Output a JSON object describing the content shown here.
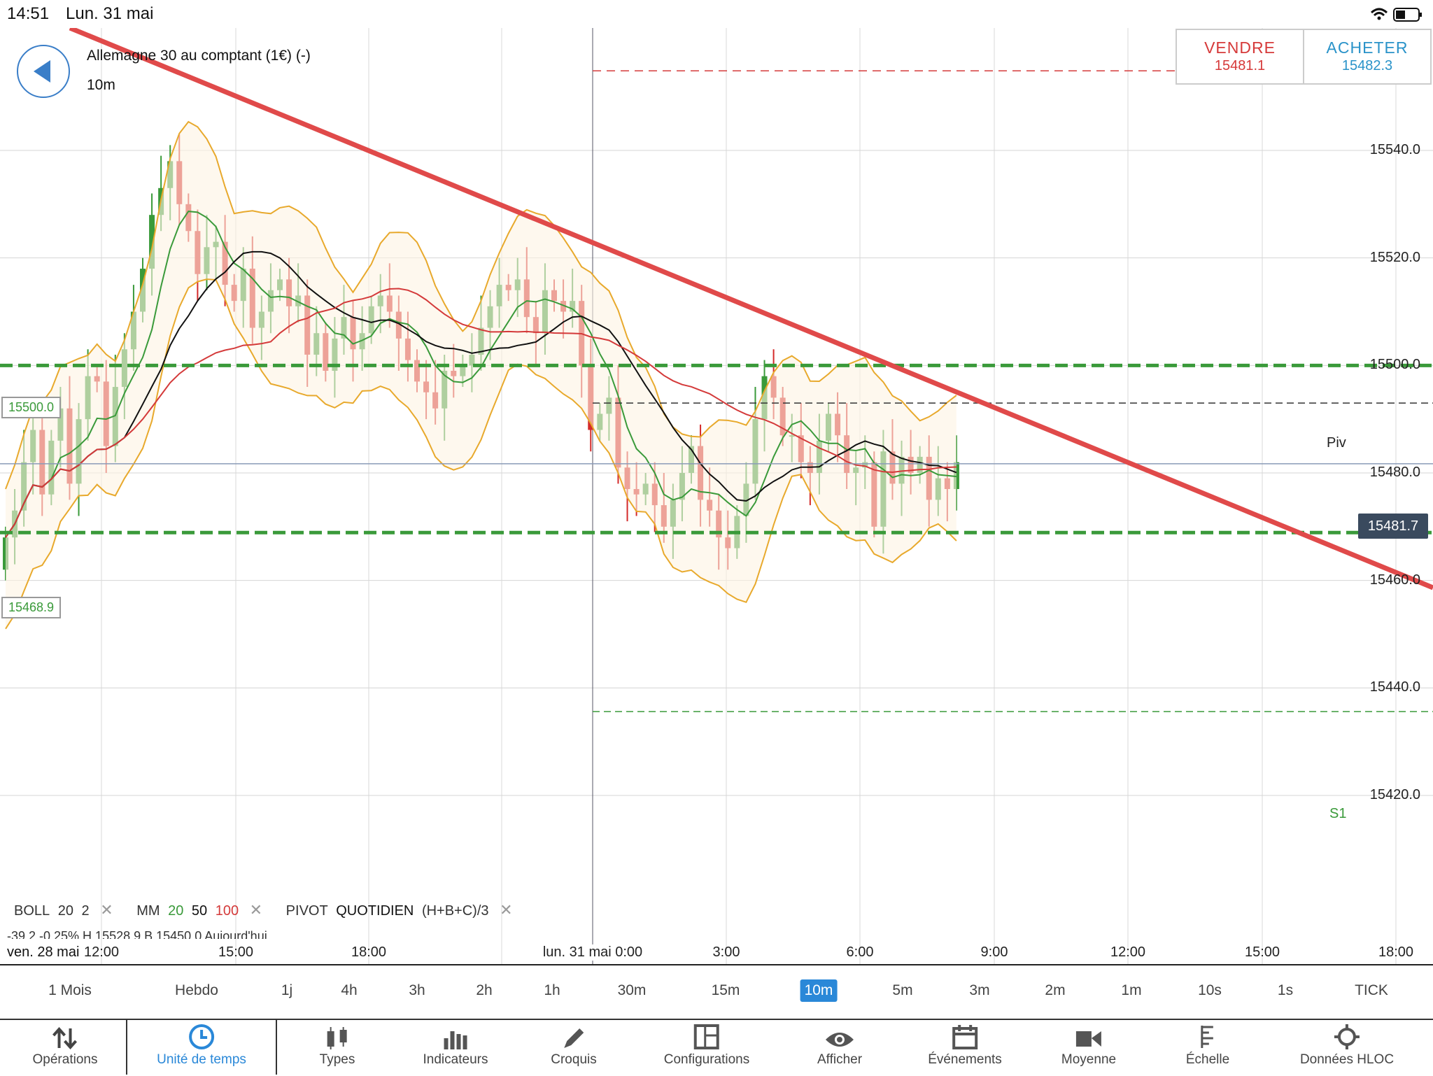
{
  "status_bar": {
    "time": "14:51",
    "date": "Lun. 31 mai"
  },
  "header": {
    "instrument": "Allemagne 30 au comptant (1€) (-)",
    "timeframe": "10m",
    "sell": {
      "label": "VENDRE",
      "price": "15481.1"
    },
    "buy": {
      "label": "ACHETER",
      "price": "15482.3"
    }
  },
  "y_axis": [
    "15540.0",
    "15520.0",
    "15500.0",
    "15480.0",
    "15460.0",
    "15440.0",
    "15420.0"
  ],
  "x_axis": {
    "labels": [
      "12:00",
      "15:00",
      "18:00",
      "lun. 31 mai 0:00",
      "3:00",
      "6:00",
      "9:00",
      "12:00",
      "15:00",
      "18:00"
    ],
    "left_date": "ven. 28 mai"
  },
  "levels": {
    "r_box_high": "15500.0",
    "r_box_low": "15468.9",
    "current_price": "15481.7",
    "pivot_label": "Piv",
    "s1_label": "S1"
  },
  "indicators": {
    "boll": {
      "name": "BOLL",
      "p1": "20",
      "p2": "2"
    },
    "mm": {
      "name": "MM",
      "p1": "20",
      "p2": "50",
      "p3": "100"
    },
    "pivot": {
      "name": "PIVOT",
      "p1": "QUOTIDIEN",
      "p2": "(H+B+C)/3"
    },
    "ohlc_row": "-39.2   -0.25%   H 15528.9   B 15450.0   Aujourd'hui"
  },
  "timeframes": [
    "1 Mois",
    "Hebdo",
    "1j",
    "4h",
    "3h",
    "2h",
    "1h",
    "30m",
    "15m",
    "10m",
    "5m",
    "3m",
    "2m",
    "1m",
    "10s",
    "1s",
    "TICK"
  ],
  "active_timeframe": "10m",
  "toolbar": [
    {
      "label": "Opérations",
      "icon": "arrows-updown-icon"
    },
    {
      "label": "Unité de temps",
      "icon": "clock-icon"
    },
    {
      "label": "Types",
      "icon": "candlestick-icon"
    },
    {
      "label": "Indicateurs",
      "icon": "bar-chart-icon"
    },
    {
      "label": "Croquis",
      "icon": "pencil-icon"
    },
    {
      "label": "Configurations",
      "icon": "layout-icon"
    },
    {
      "label": "Afficher",
      "icon": "eye-icon"
    },
    {
      "label": "Événements",
      "icon": "calendar-icon"
    },
    {
      "label": "Moyenne",
      "icon": "camera-icon"
    },
    {
      "label": "Échelle",
      "icon": "scale-icon"
    },
    {
      "label": "Données HLOC",
      "icon": "crosshair-icon"
    }
  ],
  "colors": {
    "up": "#3a9a3a",
    "down": "#d42a2a",
    "boll": "#e8a92c",
    "mm20": "#3a9a3a",
    "mm50": "#111111",
    "mm100": "#d43a3a",
    "trend": "#e04a4a",
    "accent": "#2a88d8"
  }
}
